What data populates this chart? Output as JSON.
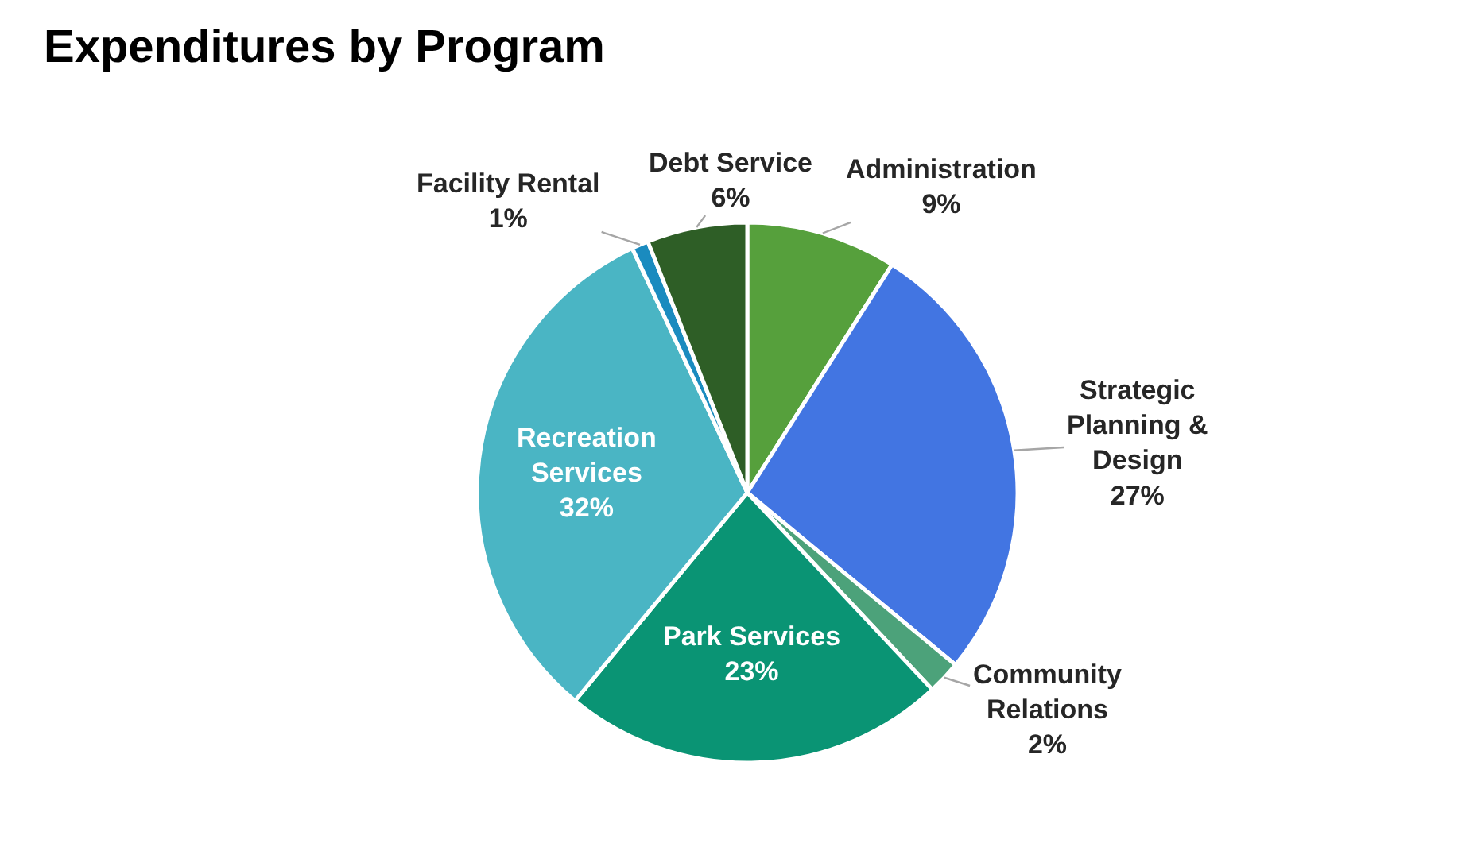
{
  "chart_data": {
    "type": "pie",
    "title": "Expenditures by Program",
    "categories": [
      "Administration",
      "Strategic Planning & Design",
      "Community Relations",
      "Park Services",
      "Recreation Services",
      "Facility Rental",
      "Debt Service"
    ],
    "values": [
      9,
      27,
      2,
      23,
      32,
      1,
      6
    ],
    "value_labels": [
      "9%",
      "27%",
      "2%",
      "23%",
      "32%",
      "1%",
      "6%"
    ],
    "colors": [
      "#56a03c",
      "#4275e2",
      "#4ca27a",
      "#0a9474",
      "#4ab5c4",
      "#1a8bbf",
      "#2e5e26"
    ],
    "legend": false
  }
}
